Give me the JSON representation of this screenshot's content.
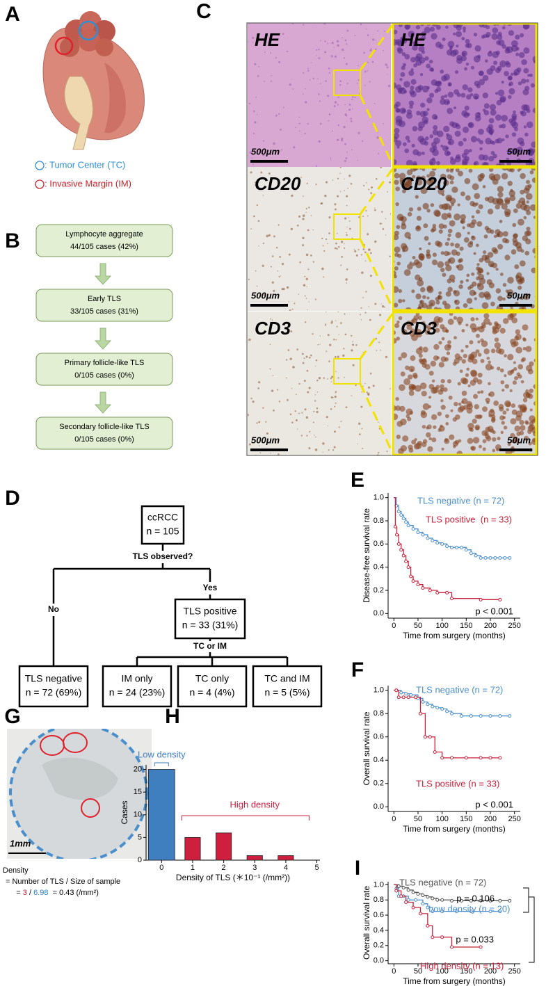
{
  "panel_letters": [
    "A",
    "B",
    "C",
    "D",
    "E",
    "F",
    "G",
    "H",
    "I"
  ],
  "panel_a": {
    "legend": [
      ": Tumor Center (TC)",
      ": Invasive Margin (IM)"
    ]
  },
  "panel_b": {
    "boxes": [
      [
        "Lymphocyte aggregate",
        "44/105 cases (42%)"
      ],
      [
        "Early TLS",
        "33/105 cases (31%)"
      ],
      [
        "Primary follicle-like TLS",
        "0/105 cases (0%)"
      ],
      [
        "Secondary follicle-like TLS",
        "0/105 cases (0%)"
      ]
    ]
  },
  "panel_c": {
    "rows": [
      {
        "stain": "HE",
        "scale_low": "500μm",
        "scale_high": "50μm"
      },
      {
        "stain": "CD20",
        "scale_low": "500μm",
        "scale_high": "50μm"
      },
      {
        "stain": "CD3",
        "scale_low": "500μm",
        "scale_high": "50μm"
      }
    ]
  },
  "panel_d": {
    "nodes": [
      [
        "ccRCC",
        "n = 105"
      ],
      [
        "TLS positive",
        "n = 33 (31%)"
      ],
      [
        "TLS negative",
        "n = 72 (69%)"
      ],
      [
        "IM only",
        "n = 24 (23%)"
      ],
      [
        "TC only",
        "n = 4 (4%)"
      ],
      [
        "TC and IM",
        "n = 5 (5%)"
      ]
    ],
    "questions": [
      "TLS observed?",
      "TC or IM"
    ],
    "branches": [
      "No",
      "Yes"
    ]
  },
  "panel_g": {
    "scale": "1mm",
    "lines": [
      "Density",
      "= Number of TLS / Size of sample"
    ],
    "formula": [
      "= ",
      "3",
      " / ",
      "6.98",
      "  = 0.43 (/mm²)"
    ]
  },
  "chart_data": [
    {
      "type": "step",
      "ylabel": "Disease-free survival rate",
      "xlabel": "Time from surgery (months)",
      "xlim": [
        -12,
        262
      ],
      "ylim": [
        -0.04,
        1.04
      ],
      "xticks": [
        0,
        50,
        100,
        150,
        200,
        250
      ],
      "yticks": [
        {
          "value": 0,
          "label": "0.0"
        },
        0.2,
        0.4,
        0.6,
        0.8,
        {
          "value": 1,
          "label": "1.0"
        }
      ],
      "series": [
        {
          "name": "TLS negative (n = 72)",
          "color": "#4a8fcb",
          "x": [
            0,
            5,
            10,
            15,
            20,
            25,
            30,
            40,
            50,
            60,
            70,
            80,
            90,
            100,
            110,
            120,
            130,
            140,
            150,
            160,
            170,
            180,
            190,
            200,
            210,
            220,
            230,
            240
          ],
          "values": [
            1.0,
            0.93,
            0.88,
            0.85,
            0.82,
            0.79,
            0.76,
            0.73,
            0.7,
            0.68,
            0.65,
            0.63,
            0.61,
            0.6,
            0.58,
            0.57,
            0.57,
            0.57,
            0.55,
            0.52,
            0.5,
            0.48,
            0.48,
            0.48,
            0.48,
            0.48,
            0.48,
            0.48
          ]
        },
        {
          "name": "TLS positive  (n = 33)",
          "color": "#c8203a",
          "x": [
            0,
            3,
            6,
            10,
            15,
            20,
            25,
            30,
            35,
            40,
            50,
            60,
            75,
            90,
            110,
            120,
            180,
            220
          ],
          "values": [
            1.0,
            0.75,
            0.68,
            0.6,
            0.55,
            0.5,
            0.45,
            0.4,
            0.32,
            0.28,
            0.25,
            0.22,
            0.2,
            0.18,
            0.18,
            0.13,
            0.12,
            0.12
          ]
        }
      ],
      "annotations": [
        "p < 0.001"
      ]
    },
    {
      "type": "step",
      "ylabel": "Overall survival rate",
      "xlabel": "Time from surgery (months)",
      "xlim": [
        -12,
        262
      ],
      "ylim": [
        -0.04,
        1.04
      ],
      "xticks": [
        0,
        50,
        100,
        150,
        200,
        250
      ],
      "yticks": [
        {
          "value": 0,
          "label": "0.0"
        },
        0.2,
        0.4,
        0.6,
        0.8,
        {
          "value": 1,
          "label": "1.0"
        }
      ],
      "series": [
        {
          "name": "TLS negative (n = 72)",
          "color": "#4a8fcb",
          "x": [
            0,
            5,
            15,
            25,
            35,
            50,
            60,
            70,
            80,
            90,
            100,
            110,
            120,
            140,
            160,
            180,
            200,
            220,
            240
          ],
          "values": [
            1.0,
            1.0,
            0.98,
            0.97,
            0.96,
            0.93,
            0.9,
            0.88,
            0.86,
            0.85,
            0.84,
            0.82,
            0.8,
            0.78,
            0.78,
            0.78,
            0.78,
            0.78,
            0.78
          ]
        },
        {
          "name": "TLS positive (n = 33)",
          "color": "#c8203a",
          "x": [
            0,
            5,
            10,
            20,
            30,
            45,
            55,
            65,
            75,
            85,
            100,
            120,
            150,
            180,
            200,
            220
          ],
          "values": [
            1.0,
            1.0,
            0.94,
            0.94,
            0.94,
            0.94,
            0.8,
            0.6,
            0.6,
            0.47,
            0.42,
            0.42,
            0.42,
            0.42,
            0.42,
            0.42
          ]
        }
      ],
      "annotations": [
        "p < 0.001"
      ]
    },
    {
      "type": "bar",
      "ylabel": "Cases",
      "xlabel": "Density of TLS (＊10⁻¹ (/mm²))",
      "x": [
        0,
        1,
        2,
        3,
        4
      ],
      "values": [
        20,
        5,
        6,
        1,
        1
      ],
      "colors": [
        "#3f7fc0",
        "#cf1f3e",
        "#cf1f3e",
        "#cf1f3e",
        "#cf1f3e"
      ],
      "xlim": [
        -0.5,
        5.1
      ],
      "ylim": [
        0,
        21
      ],
      "xticks": [
        0,
        1,
        2,
        3,
        4,
        5
      ],
      "yticks": [
        0,
        5,
        10,
        15,
        20
      ],
      "annotations": [
        "Low density",
        "High density"
      ]
    },
    {
      "type": "step",
      "ylabel": "Overall survival rate",
      "xlabel": "Time from surgery (months)",
      "xlim": [
        -12,
        262
      ],
      "ylim": [
        -0.04,
        1.04
      ],
      "xticks": [
        0,
        50,
        100,
        150,
        200,
        250
      ],
      "yticks": [
        {
          "value": 0,
          "label": "0.0"
        },
        0.2,
        0.4,
        0.6,
        0.8,
        {
          "value": 1,
          "label": "1.0"
        }
      ],
      "series": [
        {
          "name": "TLS negative (n = 72)",
          "color": "#555555",
          "x": [
            0,
            10,
            20,
            30,
            40,
            50,
            60,
            70,
            80,
            90,
            100,
            120,
            140,
            160,
            180,
            200,
            220,
            240
          ],
          "values": [
            1.0,
            0.98,
            0.96,
            0.93,
            0.9,
            0.88,
            0.86,
            0.84,
            0.82,
            0.8,
            0.8,
            0.79,
            0.79,
            0.79,
            0.79,
            0.79,
            0.79,
            0.79
          ]
        },
        {
          "name": "Low density (n = 20)",
          "color": "#4a8fcb",
          "x": [
            0,
            5,
            10,
            20,
            30,
            45,
            60,
            70,
            80,
            100,
            130,
            160,
            200,
            220
          ],
          "values": [
            1.0,
            0.95,
            0.85,
            0.85,
            0.8,
            0.8,
            0.75,
            0.7,
            0.65,
            0.65,
            0.65,
            0.65,
            0.65,
            0.65
          ]
        },
        {
          "name": "High density (n = 13)",
          "color": "#c8203a",
          "x": [
            0,
            5,
            15,
            25,
            40,
            55,
            70,
            80,
            100,
            120,
            180
          ],
          "values": [
            1.0,
            0.92,
            0.85,
            0.77,
            0.7,
            0.62,
            0.46,
            0.31,
            0.31,
            0.18,
            0.18
          ]
        }
      ],
      "annotations": [
        "p = 0.106",
        "p = 0.033"
      ]
    }
  ]
}
